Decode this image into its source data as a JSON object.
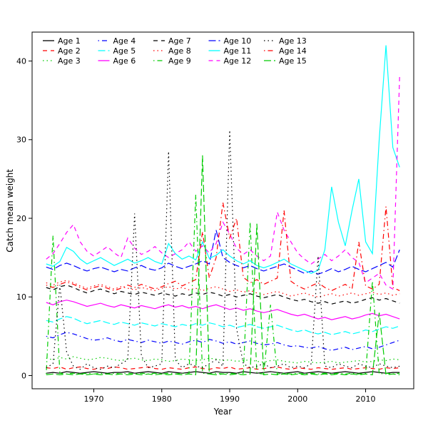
{
  "chart_data": {
    "type": "line",
    "title": "",
    "xlabel": "Year",
    "ylabel": "Catch mean weight",
    "xlim": [
      1963,
      2015
    ],
    "ylim": [
      0,
      42
    ],
    "xticks": [
      1970,
      1980,
      1990,
      2000,
      2010
    ],
    "yticks": [
      0,
      10,
      20,
      30,
      40
    ],
    "grid": false,
    "legend_position": "top-left",
    "legend_columns": 5,
    "x": [
      1963,
      1964,
      1965,
      1966,
      1967,
      1968,
      1969,
      1970,
      1971,
      1972,
      1973,
      1974,
      1975,
      1976,
      1977,
      1978,
      1979,
      1980,
      1981,
      1982,
      1983,
      1984,
      1985,
      1986,
      1987,
      1988,
      1989,
      1990,
      1991,
      1992,
      1993,
      1994,
      1995,
      1996,
      1997,
      1998,
      1999,
      2000,
      2001,
      2002,
      2003,
      2004,
      2005,
      2006,
      2007,
      2008,
      2009,
      2010,
      2011,
      2012,
      2013,
      2014,
      2015
    ],
    "series": [
      {
        "name": "Age 1",
        "color": "#000000",
        "linestyle": "solid",
        "values": [
          0.3,
          0.4,
          0.3,
          0.5,
          0.4,
          0.3,
          0.4,
          0.5,
          0.4,
          0.3,
          0.4,
          0.4,
          0.5,
          0.3,
          0.4,
          0.5,
          0.4,
          0.3,
          0.5,
          0.4,
          0.3,
          0.4,
          0.5,
          0.4,
          0.3,
          0.5,
          0.4,
          0.4,
          0.3,
          0.5,
          0.4,
          0.3,
          0.4,
          0.5,
          0.4,
          0.3,
          0.4,
          0.5,
          0.3,
          0.4,
          0.5,
          0.4,
          0.3,
          0.4,
          0.5,
          0.4,
          0.3,
          0.4,
          0.5,
          0.4,
          0.3,
          0.4,
          0.4
        ]
      },
      {
        "name": "Age 2",
        "color": "#ff0000",
        "linestyle": "dashed",
        "values": [
          1.0,
          0.9,
          1.1,
          0.8,
          1.0,
          1.1,
          0.9,
          0.8,
          1.0,
          0.9,
          1.1,
          1.0,
          0.8,
          0.9,
          1.0,
          1.1,
          0.9,
          0.8,
          1.0,
          0.9,
          0.8,
          1.0,
          1.1,
          0.9,
          0.8,
          1.0,
          0.9,
          1.1,
          0.8,
          0.9,
          1.0,
          0.8,
          0.9,
          1.0,
          1.1,
          0.9,
          0.8,
          1.0,
          0.9,
          0.8,
          1.0,
          0.9,
          0.8,
          0.9,
          1.0,
          0.8,
          0.9,
          1.0,
          0.9,
          0.8,
          1.0,
          0.9,
          1.0
        ]
      },
      {
        "name": "Age 3",
        "color": "#00cc00",
        "linestyle": "dotted",
        "values": [
          2.2,
          2.0,
          2.3,
          2.1,
          2.4,
          2.2,
          2.0,
          2.1,
          2.3,
          2.2,
          2.0,
          1.9,
          2.1,
          2.2,
          2.0,
          1.9,
          2.1,
          2.0,
          1.8,
          1.9,
          2.1,
          2.0,
          1.9,
          2.0,
          2.2,
          2.1,
          1.9,
          2.0,
          1.8,
          1.9,
          2.0,
          1.8,
          1.7,
          1.9,
          2.0,
          1.8,
          1.7,
          1.6,
          1.8,
          1.7,
          1.6,
          1.7,
          1.8,
          1.6,
          1.7,
          1.8,
          1.9,
          1.7,
          1.8,
          2.0,
          1.9,
          2.1,
          2.0
        ]
      },
      {
        "name": "Age 4",
        "color": "#0000ff",
        "linestyle": "dotdash",
        "values": [
          5.0,
          4.8,
          5.2,
          5.5,
          5.3,
          5.0,
          4.7,
          4.5,
          4.6,
          4.8,
          4.5,
          4.3,
          4.6,
          4.4,
          4.2,
          4.5,
          4.3,
          4.1,
          4.4,
          4.2,
          4.0,
          4.3,
          4.5,
          4.2,
          4.6,
          4.4,
          4.1,
          4.3,
          4.0,
          4.2,
          4.4,
          4.1,
          3.9,
          4.0,
          4.2,
          3.9,
          3.7,
          3.8,
          3.6,
          3.5,
          3.7,
          3.4,
          3.2,
          3.4,
          3.6,
          3.3,
          3.5,
          3.7,
          3.4,
          3.6,
          3.9,
          4.2,
          4.5
        ]
      },
      {
        "name": "Age 5",
        "color": "#00ffff",
        "linestyle": "longdash",
        "values": [
          7.0,
          6.8,
          7.2,
          7.5,
          7.3,
          6.9,
          6.6,
          6.8,
          7.0,
          6.7,
          6.5,
          6.8,
          6.6,
          6.4,
          6.7,
          6.5,
          6.3,
          6.6,
          6.4,
          6.2,
          6.5,
          6.3,
          6.6,
          6.4,
          6.7,
          6.5,
          6.2,
          6.4,
          6.1,
          6.3,
          6.5,
          6.2,
          6.0,
          6.2,
          6.4,
          6.1,
          5.8,
          5.6,
          5.8,
          5.5,
          5.3,
          5.5,
          5.2,
          5.4,
          5.6,
          5.3,
          5.5,
          5.8,
          5.6,
          5.9,
          6.2,
          6.0,
          6.3
        ]
      },
      {
        "name": "Age 6",
        "color": "#ff00ff",
        "linestyle": "solid",
        "values": [
          9.3,
          9.0,
          9.4,
          9.6,
          9.4,
          9.1,
          8.8,
          9.0,
          9.2,
          8.9,
          8.7,
          9.0,
          8.8,
          8.6,
          8.9,
          8.7,
          8.5,
          8.8,
          9.0,
          8.7,
          8.9,
          8.6,
          8.8,
          8.5,
          8.8,
          9.0,
          8.7,
          8.4,
          8.6,
          8.3,
          8.5,
          8.2,
          8.0,
          8.2,
          8.4,
          8.1,
          7.8,
          7.6,
          7.8,
          7.5,
          7.2,
          7.4,
          7.1,
          7.3,
          7.5,
          7.2,
          7.4,
          7.7,
          7.9,
          7.6,
          7.8,
          7.5,
          7.2
        ]
      },
      {
        "name": "Age 7",
        "color": "#000000",
        "linestyle": "dashed",
        "values": [
          11.2,
          10.9,
          11.3,
          11.5,
          11.2,
          10.8,
          10.5,
          10.8,
          11.0,
          10.7,
          10.4,
          10.7,
          10.5,
          10.3,
          10.6,
          10.4,
          10.2,
          10.5,
          10.3,
          10.1,
          10.4,
          10.2,
          10.5,
          10.3,
          10.6,
          10.4,
          10.1,
          10.3,
          10.0,
          10.2,
          10.4,
          10.1,
          9.9,
          10.1,
          10.3,
          10.0,
          9.7,
          9.5,
          9.7,
          9.4,
          9.2,
          9.4,
          9.1,
          9.3,
          9.5,
          9.2,
          9.4,
          9.7,
          9.9,
          9.6,
          9.8,
          9.5,
          9.2
        ]
      },
      {
        "name": "Age 8",
        "color": "#ff0000",
        "linestyle": "dotted",
        "values": [
          11.8,
          11.5,
          11.9,
          12.1,
          11.8,
          11.4,
          11.1,
          11.4,
          11.6,
          11.3,
          11.0,
          11.3,
          11.1,
          10.9,
          11.2,
          11.0,
          10.8,
          11.1,
          11.3,
          11.0,
          11.2,
          10.9,
          11.1,
          10.8,
          11.1,
          11.3,
          11.0,
          10.7,
          10.9,
          10.6,
          10.8,
          10.5,
          10.3,
          10.5,
          10.7,
          10.4,
          10.1,
          10.3,
          10.5,
          10.2,
          10.0,
          10.2,
          10.4,
          10.1,
          10.3,
          10.5,
          10.2,
          10.4,
          10.6,
          10.3,
          10.5,
          10.2,
          10.4
        ]
      },
      {
        "name": "Age 9",
        "color": "#00cc00",
        "linestyle": "dotdash",
        "values": [
          0.2,
          17.8,
          0.3,
          0.2,
          0.3,
          0.2,
          0.3,
          0.2,
          0.3,
          0.2,
          0.3,
          0.2,
          0.3,
          0.2,
          0.3,
          0.2,
          0.3,
          0.2,
          0.3,
          0.2,
          0.3,
          0.2,
          23.0,
          0.3,
          0.2,
          0.3,
          0.2,
          0.3,
          0.2,
          0.3,
          19.5,
          0.3,
          0.2,
          9.0,
          0.2,
          0.3,
          0.2,
          0.3,
          0.2,
          0.3,
          0.2,
          0.3,
          0.2,
          0.3,
          0.2,
          0.3,
          0.2,
          0.3,
          12.0,
          0.2,
          0.3,
          0.2,
          0.3
        ]
      },
      {
        "name": "Age 10",
        "color": "#0000ff",
        "linestyle": "longdash",
        "values": [
          13.8,
          13.5,
          14.0,
          14.3,
          14.0,
          13.6,
          13.3,
          13.6,
          13.8,
          13.5,
          13.2,
          13.5,
          13.3,
          13.7,
          14.0,
          13.6,
          13.4,
          13.7,
          14.3,
          13.9,
          13.6,
          13.9,
          14.2,
          14.6,
          14.2,
          18.5,
          15.0,
          14.4,
          14.0,
          13.7,
          14.0,
          13.6,
          13.3,
          13.6,
          13.9,
          14.2,
          13.8,
          13.4,
          13.0,
          13.3,
          12.9,
          13.2,
          13.6,
          13.2,
          13.5,
          13.9,
          13.5,
          13.2,
          13.6,
          14.0,
          14.4,
          13.8,
          16.0
        ]
      },
      {
        "name": "Age 11",
        "color": "#00ffff",
        "linestyle": "solid",
        "values": [
          14.2,
          13.9,
          14.5,
          16.3,
          15.8,
          14.8,
          14.2,
          14.6,
          15.0,
          14.5,
          14.0,
          14.4,
          14.8,
          14.3,
          14.6,
          15.0,
          14.5,
          14.2,
          16.8,
          15.5,
          14.8,
          15.2,
          14.7,
          17.0,
          14.9,
          15.3,
          16.0,
          15.2,
          14.6,
          14.2,
          14.6,
          14.0,
          13.7,
          14.0,
          14.4,
          14.8,
          14.2,
          13.8,
          13.4,
          13.0,
          13.4,
          16.0,
          24.0,
          19.5,
          16.5,
          21.0,
          25.0,
          17.0,
          15.5,
          30.0,
          42.0,
          29.0,
          26.5
        ]
      },
      {
        "name": "Age 12",
        "color": "#ff00ff",
        "linestyle": "dashed",
        "values": [
          14.8,
          15.5,
          16.8,
          18.2,
          19.2,
          17.0,
          15.8,
          15.2,
          15.8,
          16.4,
          15.6,
          15.0,
          17.5,
          16.2,
          15.4,
          15.8,
          16.4,
          15.6,
          15.0,
          15.5,
          16.0,
          17.0,
          15.8,
          16.5,
          15.6,
          16.8,
          19.5,
          18.0,
          16.2,
          15.4,
          16.0,
          15.2,
          14.6,
          15.2,
          20.8,
          18.5,
          17.0,
          15.6,
          14.8,
          14.2,
          14.8,
          15.4,
          14.6,
          15.2,
          16.0,
          15.0,
          14.4,
          11.8,
          12.4,
          13.0,
          11.5,
          11.0,
          38.0
        ]
      },
      {
        "name": "Age 13",
        "color": "#000000",
        "linestyle": "dotted",
        "values": [
          1.0,
          1.5,
          11.5,
          3.0,
          1.2,
          0.8,
          1.5,
          1.0,
          0.8,
          1.2,
          1.0,
          1.5,
          2.0,
          20.6,
          2.5,
          1.0,
          1.2,
          1.5,
          28.5,
          2.0,
          1.0,
          1.5,
          1.2,
          1.0,
          1.5,
          2.0,
          1.2,
          31.2,
          6.0,
          1.5,
          1.0,
          1.2,
          1.5,
          1.0,
          1.2,
          1.5,
          1.0,
          1.2,
          1.0,
          1.5,
          15.2,
          1.2,
          1.0,
          1.5,
          1.2,
          1.0,
          1.5,
          1.2,
          1.0,
          1.5,
          1.2,
          1.0,
          1.2
        ]
      },
      {
        "name": "Age 14",
        "color": "#ff0000",
        "linestyle": "dotdash",
        "values": [
          11.5,
          11.2,
          11.6,
          11.9,
          11.6,
          11.2,
          10.9,
          11.2,
          11.4,
          11.1,
          10.8,
          11.1,
          11.5,
          11.2,
          11.6,
          11.3,
          11.0,
          11.3,
          11.7,
          12.0,
          11.4,
          11.8,
          12.2,
          18.3,
          12.4,
          15.0,
          22.0,
          17.5,
          20.0,
          12.5,
          11.8,
          12.2,
          11.6,
          12.0,
          12.4,
          21.0,
          12.0,
          11.4,
          11.0,
          11.4,
          11.8,
          11.2,
          10.8,
          11.2,
          11.6,
          11.0,
          17.0,
          11.4,
          11.0,
          11.6,
          21.5,
          11.2,
          10.8
        ]
      },
      {
        "name": "Age 15",
        "color": "#00cc00",
        "linestyle": "longdash",
        "values": [
          0.1,
          0.2,
          0.1,
          0.2,
          0.1,
          0.2,
          0.1,
          0.2,
          0.1,
          0.2,
          0.1,
          0.2,
          0.1,
          0.2,
          0.1,
          0.2,
          0.1,
          0.2,
          0.1,
          0.2,
          0.1,
          0.2,
          0.1,
          28.0,
          0.2,
          0.1,
          0.2,
          0.1,
          0.2,
          0.1,
          0.2,
          19.3,
          0.1,
          0.2,
          0.1,
          0.2,
          0.1,
          0.2,
          0.1,
          0.2,
          0.1,
          0.2,
          0.1,
          0.2,
          0.1,
          0.2,
          0.1,
          0.2,
          0.1,
          8.0,
          0.1,
          0.2,
          0.1
        ]
      }
    ]
  }
}
